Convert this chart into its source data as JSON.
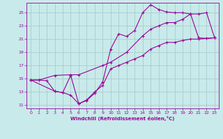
{
  "xlabel": "Windchill (Refroidissement éolien,°C)",
  "bg_color": "#c8eaea",
  "grid_color": "#aacccc",
  "line_color": "#990099",
  "xlim": [
    -0.5,
    23.5
  ],
  "ylim": [
    10.5,
    26.5
  ],
  "xticks": [
    0,
    1,
    2,
    3,
    4,
    5,
    6,
    7,
    8,
    9,
    10,
    11,
    12,
    13,
    14,
    15,
    16,
    17,
    18,
    19,
    20,
    21,
    22,
    23
  ],
  "yticks": [
    11,
    13,
    15,
    17,
    19,
    21,
    23,
    25
  ],
  "line1_x": [
    0,
    1,
    2,
    3,
    4,
    5,
    6,
    7,
    8,
    9,
    10,
    11,
    12,
    13,
    14,
    15,
    16,
    17,
    18,
    19,
    20,
    21,
    22,
    23
  ],
  "line1_y": [
    14.8,
    14.8,
    14.7,
    13.1,
    12.9,
    15.5,
    11.2,
    11.7,
    12.8,
    14.5,
    19.5,
    21.8,
    21.4,
    22.3,
    25.0,
    26.2,
    25.5,
    25.1,
    25.0,
    25.0,
    24.8,
    21.2,
    21.1,
    21.2
  ],
  "line2_x": [
    0,
    1,
    3,
    5,
    6,
    9,
    10,
    12,
    14,
    15,
    16,
    17,
    18,
    19,
    20,
    21,
    22,
    23
  ],
  "line2_y": [
    14.8,
    14.8,
    15.5,
    15.6,
    15.6,
    17.0,
    17.5,
    19.0,
    21.5,
    22.5,
    23.0,
    23.5,
    23.5,
    24.0,
    24.8,
    24.8,
    25.0,
    21.2
  ],
  "line3_x": [
    0,
    3,
    4,
    5,
    6,
    7,
    8,
    9,
    10,
    11,
    12,
    13,
    14,
    15,
    16,
    17,
    18,
    19,
    20,
    21,
    23
  ],
  "line3_y": [
    14.8,
    13.1,
    12.9,
    12.5,
    11.2,
    11.8,
    13.0,
    14.0,
    16.5,
    17.0,
    17.5,
    18.0,
    18.5,
    19.5,
    20.0,
    20.5,
    20.5,
    20.8,
    21.0,
    21.0,
    21.2
  ]
}
